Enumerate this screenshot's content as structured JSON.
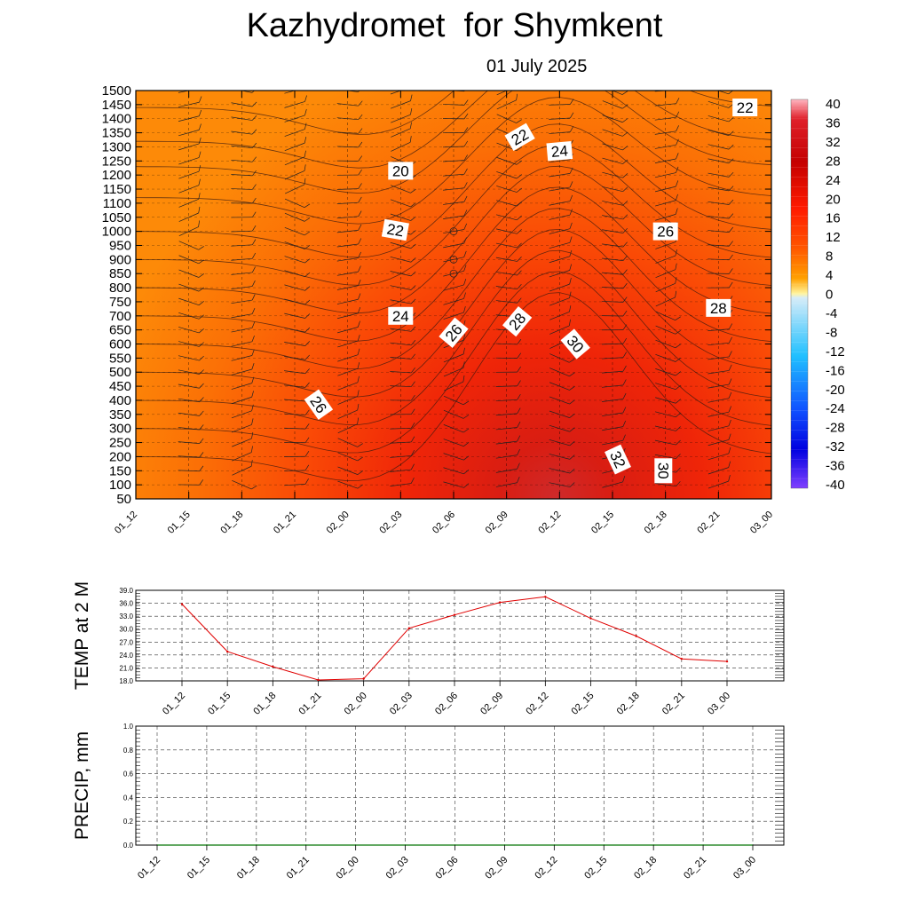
{
  "header": {
    "title": "Kazhydromet  for Shymkent",
    "subtitle": "01 July 2025"
  },
  "colors": {
    "background": "#ffffff",
    "temp_line": "#e00000",
    "precip_line": "#2e8b2e"
  },
  "chart_data": [
    {
      "type": "heatmap",
      "name": "vertical-cross-section",
      "x_categories": [
        "01_12",
        "01_15",
        "01_18",
        "01_21",
        "02_00",
        "02_03",
        "02_06",
        "02_09",
        "02_12",
        "02_15",
        "02_18",
        "02_21",
        "03_00"
      ],
      "y_levels": [
        50,
        100,
        150,
        200,
        250,
        300,
        350,
        400,
        450,
        500,
        550,
        600,
        650,
        700,
        750,
        800,
        850,
        900,
        950,
        1000,
        1050,
        1100,
        1150,
        1200,
        1250,
        1300,
        1350,
        1400,
        1450,
        1500
      ],
      "ylim": [
        50,
        1500
      ],
      "colorbar": {
        "labels": [
          "40",
          "36",
          "32",
          "28",
          "24",
          "20",
          "16",
          "12",
          "8",
          "4",
          "0",
          "-4",
          "-8",
          "-12",
          "-16",
          "-20",
          "-24",
          "-28",
          "-32",
          "-36",
          "-40"
        ],
        "range": [
          -40,
          40
        ]
      },
      "grid": true,
      "contour_labels": [
        {
          "text": "22",
          "x": 11.5,
          "y": 1440,
          "angle": 0
        },
        {
          "text": "22",
          "x": 7.25,
          "y": 1335,
          "angle": -30
        },
        {
          "text": "24",
          "x": 8.0,
          "y": 1285,
          "angle": -5
        },
        {
          "text": "20",
          "x": 5.0,
          "y": 1215,
          "angle": 0
        },
        {
          "text": "22",
          "x": 4.9,
          "y": 1005,
          "angle": 10
        },
        {
          "text": "26",
          "x": 10.0,
          "y": 1000,
          "angle": 0
        },
        {
          "text": "28",
          "x": 11.0,
          "y": 728,
          "angle": 0
        },
        {
          "text": "24",
          "x": 5.0,
          "y": 700,
          "angle": 0
        },
        {
          "text": "28",
          "x": 7.2,
          "y": 680,
          "angle": -50
        },
        {
          "text": "26",
          "x": 6.0,
          "y": 640,
          "angle": -50
        },
        {
          "text": "30",
          "x": 8.3,
          "y": 600,
          "angle": 50
        },
        {
          "text": "26",
          "x": 3.45,
          "y": 385,
          "angle": 55
        },
        {
          "text": "32",
          "x": 9.1,
          "y": 190,
          "angle": 65
        },
        {
          "text": "30",
          "x": 9.96,
          "y": 150,
          "angle": 90
        }
      ]
    },
    {
      "type": "line",
      "name": "temp-at-2m",
      "ylabel": "TEMP at 2 M",
      "categories": [
        "01_12",
        "01_15",
        "01_18",
        "01_21",
        "02_00",
        "02_03",
        "02_06",
        "02_09",
        "02_12",
        "02_15",
        "02_18",
        "02_21",
        "03_00"
      ],
      "series": [
        {
          "values": [
            35.8,
            24.8,
            21.3,
            18.2,
            18.5,
            30.2,
            33.3,
            36.2,
            37.5,
            32.5,
            28.4,
            23.1,
            22.5
          ]
        }
      ],
      "yticks": [
        "39.0",
        "36.0",
        "33.0",
        "30.0",
        "27.0",
        "24.0",
        "21.0",
        "18.0"
      ],
      "ylim": [
        18,
        39
      ],
      "grid": true
    },
    {
      "type": "line",
      "name": "precip",
      "ylabel": "PRECIP, mm",
      "categories": [
        "01_12",
        "01_15",
        "01_18",
        "01_21",
        "02_00",
        "02_03",
        "02_06",
        "02_09",
        "02_12",
        "02_15",
        "02_18",
        "02_21",
        "03_00"
      ],
      "series": [
        {
          "values": [
            0,
            0,
            0,
            0,
            0,
            0,
            0,
            0,
            0,
            0,
            0,
            0,
            0
          ]
        }
      ],
      "yticks": [
        "1.0",
        "0.8",
        "0.6",
        "0.4",
        "0.2",
        "0.0"
      ],
      "ylim": [
        0,
        1
      ],
      "grid": true
    }
  ]
}
